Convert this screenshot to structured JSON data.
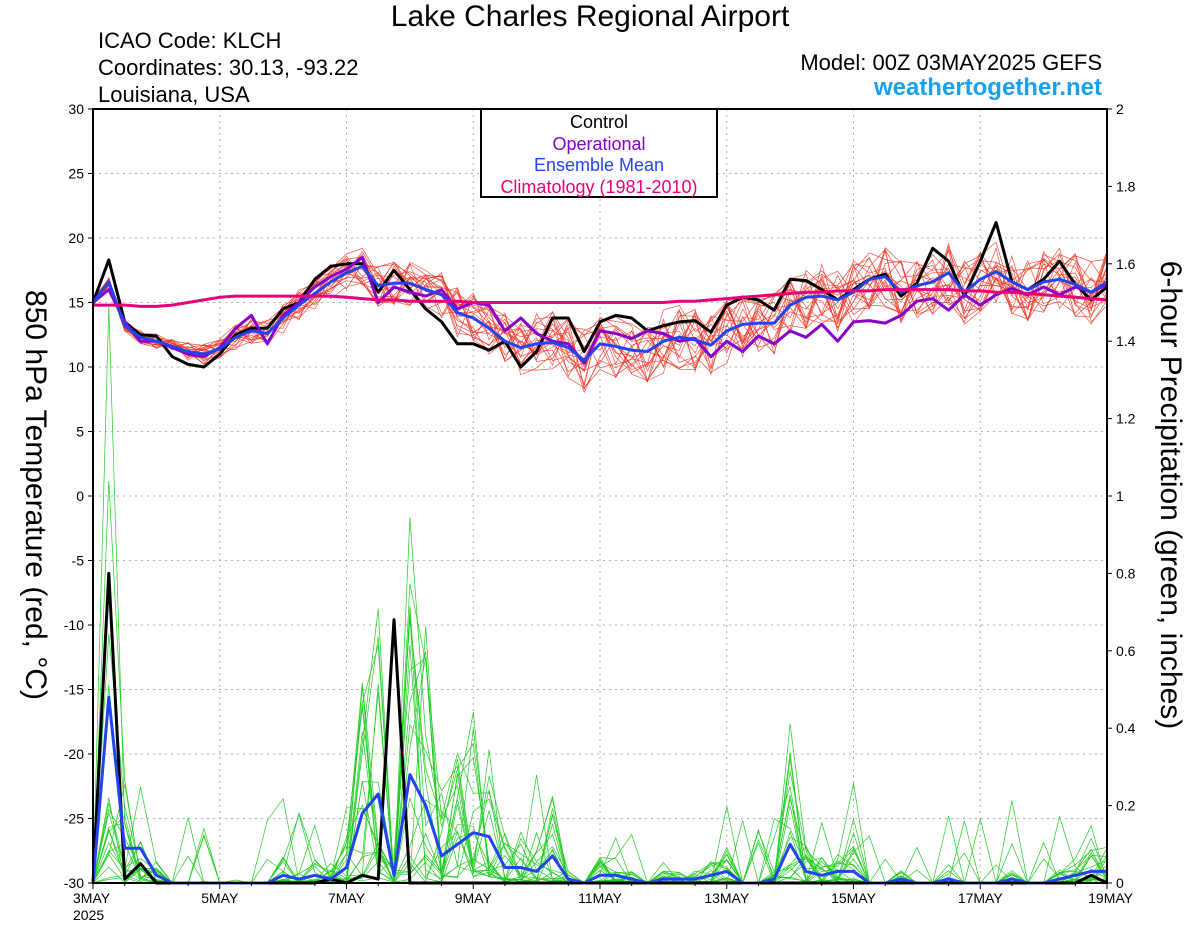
{
  "header": {
    "title": "Lake Charles Regional Airport",
    "icao": "ICAO Code: KLCH",
    "coordinates": "Coordinates: 30.13, -93.22",
    "location": "Louisiana, USA",
    "model": "Model: 00Z 03MAY2025 GEFS",
    "site": "weathertogether.net"
  },
  "legend": {
    "control": "Control",
    "operational": "Operational",
    "ensemble_mean": "Ensemble Mean",
    "climatology": "Climatology (1981-2010)"
  },
  "colors": {
    "control": "#000000",
    "operational": "#8800cc",
    "ensemble_mean": "#2244ee",
    "climatology": "#e8007a",
    "members_temp": "#ee3322",
    "members_precip": "#22cc22",
    "site": "#1aa0ec"
  },
  "chart_data": {
    "type": "line",
    "title": "Lake Charles Regional Airport",
    "ylabel": "850 hPa Temperature (red, °C)",
    "y2label": "6-hour Precipitation (green, inches)",
    "ylim": [
      -30,
      30
    ],
    "y2lim": [
      0,
      2
    ],
    "yticks": [
      -30,
      -25,
      -20,
      -15,
      -10,
      -5,
      0,
      5,
      10,
      15,
      20,
      25,
      30
    ],
    "y2ticks": [
      0,
      0.2,
      0.4,
      0.6,
      0.8,
      1,
      1.2,
      1.4,
      1.6,
      1.8,
      2
    ],
    "xlim_hours": [
      0,
      384
    ],
    "x_step_hours": 6,
    "xticks": [
      {
        "hour": 0,
        "label": "3MAY",
        "sublabel": "2025"
      },
      {
        "hour": 48,
        "label": "5MAY",
        "sublabel": ""
      },
      {
        "hour": 96,
        "label": "7MAY",
        "sublabel": ""
      },
      {
        "hour": 144,
        "label": "9MAY",
        "sublabel": ""
      },
      {
        "hour": 192,
        "label": "11MAY",
        "sublabel": ""
      },
      {
        "hour": 240,
        "label": "13MAY",
        "sublabel": ""
      },
      {
        "hour": 288,
        "label": "15MAY",
        "sublabel": ""
      },
      {
        "hour": 336,
        "label": "17MAY",
        "sublabel": ""
      },
      {
        "hour": 384,
        "label": "19MAY",
        "sublabel": ""
      }
    ],
    "grid": true,
    "temperature_series": [
      {
        "name": "Control",
        "values": [
          15.0,
          18.3,
          13.5,
          12.5,
          12.4,
          10.8,
          10.2,
          10.0,
          11.0,
          12.5,
          13.0,
          13.0,
          14.5,
          15.0,
          16.8,
          17.8,
          18.0,
          18.0,
          15.8,
          17.5,
          16.0,
          14.5,
          13.5,
          11.8,
          11.8,
          11.3,
          12.0,
          10.0,
          11.2,
          13.8,
          13.8,
          11.2,
          13.5,
          14.0,
          13.8,
          12.8,
          13.2,
          13.5,
          13.6,
          12.7,
          14.8,
          15.4,
          15.2,
          14.4,
          16.8,
          16.7,
          16.0,
          15.2,
          16.0,
          16.8,
          17.2,
          15.5,
          16.5,
          19.2,
          18.2,
          15.5,
          18.2,
          21.2,
          16.6,
          16.0,
          16.8,
          18.2,
          16.4,
          15.2,
          16.2
        ]
      },
      {
        "name": "Operational",
        "values": [
          15.0,
          16.0,
          13.5,
          12.0,
          12.0,
          11.5,
          11.0,
          10.8,
          11.5,
          13.0,
          14.0,
          11.8,
          14.0,
          15.0,
          16.2,
          17.0,
          17.6,
          18.5,
          15.0,
          16.2,
          15.8,
          15.5,
          16.0,
          14.5,
          15.0,
          14.8,
          12.8,
          13.8,
          12.6,
          12.0,
          11.8,
          10.3,
          12.8,
          12.6,
          12.2,
          12.8,
          12.6,
          12.0,
          12.2,
          10.8,
          12.0,
          11.2,
          12.4,
          11.8,
          12.8,
          12.3,
          13.3,
          12.0,
          13.5,
          13.6,
          13.4,
          14.0,
          15.1,
          15.3,
          14.4,
          15.6,
          14.8,
          15.6,
          16.1,
          15.6,
          16.2,
          15.6,
          16.2,
          15.8,
          16.4
        ]
      },
      {
        "name": "Ensemble Mean",
        "values": [
          15.0,
          16.6,
          13.2,
          12.3,
          12.0,
          11.6,
          11.2,
          11.0,
          11.4,
          12.3,
          12.8,
          12.6,
          13.8,
          14.8,
          15.7,
          16.6,
          17.3,
          17.8,
          16.3,
          16.5,
          16.5,
          16.0,
          15.6,
          14.2,
          13.8,
          13.0,
          12.0,
          11.5,
          11.8,
          11.9,
          11.5,
          10.5,
          11.8,
          11.6,
          11.3,
          11.2,
          12.0,
          12.3,
          12.1,
          11.7,
          12.8,
          13.3,
          13.4,
          13.4,
          14.8,
          15.4,
          15.5,
          15.2,
          15.8,
          16.8,
          17.0,
          15.8,
          16.3,
          16.6,
          17.3,
          15.8,
          16.8,
          17.4,
          16.6,
          16.0,
          16.6,
          16.8,
          16.4,
          15.8,
          16.6
        ]
      },
      {
        "name": "Climatology (1981-2010)",
        "values": [
          14.8,
          14.8,
          14.8,
          14.7,
          14.7,
          14.8,
          15.0,
          15.2,
          15.4,
          15.5,
          15.5,
          15.5,
          15.5,
          15.5,
          15.5,
          15.5,
          15.4,
          15.3,
          15.2,
          15.2,
          15.1,
          15.1,
          15.1,
          15.1,
          15.0,
          15.0,
          15.0,
          15.0,
          15.0,
          15.0,
          15.0,
          15.0,
          15.0,
          15.0,
          15.0,
          15.0,
          15.0,
          15.1,
          15.1,
          15.2,
          15.3,
          15.4,
          15.5,
          15.6,
          15.7,
          15.8,
          15.8,
          15.9,
          15.9,
          15.9,
          16.0,
          16.0,
          16.0,
          16.0,
          16.0,
          15.9,
          15.9,
          15.8,
          15.8,
          15.7,
          15.6,
          15.5,
          15.4,
          15.3,
          15.2
        ]
      }
    ],
    "precip_series": [
      {
        "name": "Control",
        "values": [
          0,
          0.8,
          0.01,
          0.05,
          0,
          0,
          0,
          0,
          0,
          0,
          0,
          0,
          0,
          0,
          0,
          0.01,
          0,
          0.02,
          0.01,
          0.68,
          0,
          0,
          0,
          0,
          0,
          0,
          0,
          0,
          0,
          0,
          0,
          0,
          0,
          0,
          0,
          0,
          0,
          0,
          0,
          0,
          0,
          0,
          0,
          0,
          0,
          0,
          0,
          0,
          0,
          0,
          0,
          0,
          0,
          0,
          0,
          0,
          0,
          0,
          0,
          0,
          0,
          0,
          0,
          0.02,
          0
        ]
      },
      {
        "name": "Ensemble Mean",
        "values": [
          0,
          0.48,
          0.09,
          0.09,
          0.02,
          0,
          0,
          0,
          0,
          0,
          0,
          0,
          0.02,
          0.01,
          0.02,
          0.01,
          0.04,
          0.18,
          0.23,
          0.02,
          0.28,
          0.2,
          0.07,
          0.1,
          0.13,
          0.12,
          0.04,
          0.04,
          0.03,
          0.07,
          0.01,
          0,
          0.02,
          0.02,
          0.01,
          0,
          0.01,
          0.01,
          0.01,
          0.02,
          0.03,
          0,
          0,
          0.01,
          0.1,
          0.03,
          0.02,
          0.03,
          0.03,
          0,
          0,
          0.01,
          0,
          0,
          0.01,
          0,
          0,
          0,
          0.01,
          0,
          0,
          0.01,
          0.02,
          0.03,
          0.03
        ]
      }
    ]
  }
}
